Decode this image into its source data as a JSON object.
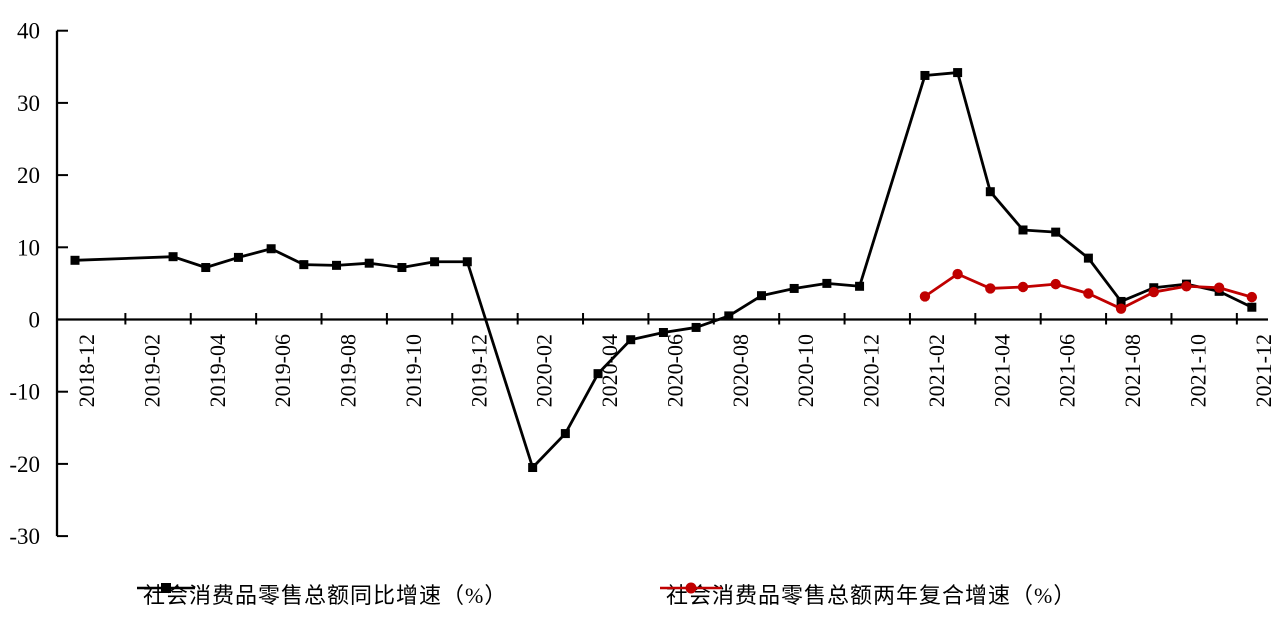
{
  "chart_data": {
    "type": "line",
    "title": "",
    "grid": "off",
    "legend_position": "bottom",
    "x_axis": {
      "tick_labels": [
        "2018-12",
        "2019-02",
        "2019-04",
        "2019-06",
        "2019-08",
        "2019-10",
        "2019-12",
        "2020-02",
        "2020-04",
        "2020-06",
        "2020-08",
        "2020-10",
        "2020-12",
        "2021-02",
        "2021-04",
        "2021-06",
        "2021-08",
        "2021-10",
        "2021-12"
      ]
    },
    "y_axis": {
      "ticks": [
        40,
        30,
        20,
        10,
        0,
        -10,
        -20,
        -30
      ],
      "range": [
        -30,
        40
      ]
    },
    "axis_color": "#000000",
    "series": [
      {
        "name": "社会消费品零售总额同比增速（%）",
        "color": "#000000",
        "marker": "square",
        "points": [
          [
            "2018-12",
            8.2
          ],
          [
            "2019-03",
            8.7
          ],
          [
            "2019-04",
            7.2
          ],
          [
            "2019-05",
            8.6
          ],
          [
            "2019-06",
            9.8
          ],
          [
            "2019-07",
            7.6
          ],
          [
            "2019-08",
            7.5
          ],
          [
            "2019-09",
            7.8
          ],
          [
            "2019-10",
            7.2
          ],
          [
            "2019-11",
            8.0
          ],
          [
            "2019-12",
            8.0
          ],
          [
            "2020-02",
            -20.5
          ],
          [
            "2020-03",
            -15.8
          ],
          [
            "2020-04",
            -7.5
          ],
          [
            "2020-05",
            -2.8
          ],
          [
            "2020-06",
            -1.8
          ],
          [
            "2020-07",
            -1.1
          ],
          [
            "2020-08",
            0.5
          ],
          [
            "2020-09",
            3.3
          ],
          [
            "2020-10",
            4.3
          ],
          [
            "2020-11",
            5.0
          ],
          [
            "2020-12",
            4.6
          ],
          [
            "2021-02",
            33.8
          ],
          [
            "2021-03",
            34.2
          ],
          [
            "2021-04",
            17.7
          ],
          [
            "2021-05",
            12.4
          ],
          [
            "2021-06",
            12.1
          ],
          [
            "2021-07",
            8.5
          ],
          [
            "2021-08",
            2.5
          ],
          [
            "2021-09",
            4.4
          ],
          [
            "2021-10",
            4.9
          ],
          [
            "2021-11",
            3.9
          ],
          [
            "2021-12",
            1.7
          ]
        ]
      },
      {
        "name": "社会消费品零售总额两年复合增速（%）",
        "color": "#C00000",
        "marker": "circle",
        "points": [
          [
            "2021-02",
            3.2
          ],
          [
            "2021-03",
            6.3
          ],
          [
            "2021-04",
            4.3
          ],
          [
            "2021-05",
            4.5
          ],
          [
            "2021-06",
            4.9
          ],
          [
            "2021-07",
            3.6
          ],
          [
            "2021-08",
            1.5
          ],
          [
            "2021-09",
            3.8
          ],
          [
            "2021-10",
            4.6
          ],
          [
            "2021-11",
            4.4
          ],
          [
            "2021-12",
            3.1
          ]
        ]
      }
    ]
  }
}
